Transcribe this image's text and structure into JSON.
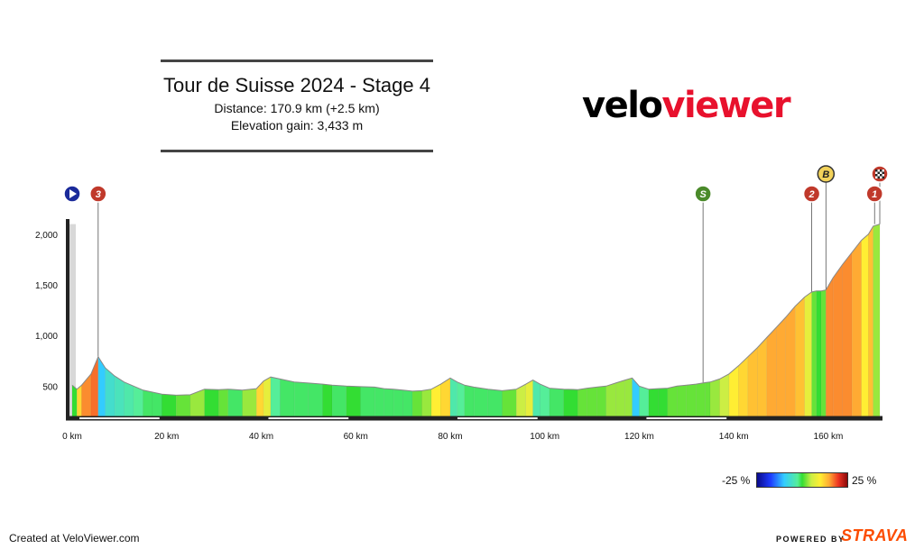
{
  "header": {
    "title": "Tour de Suisse 2024 - Stage 4",
    "distance": "Distance: 170.9 km (+2.5 km)",
    "elevation_gain": "Elevation gain: 3,433 m"
  },
  "logo": {
    "part1": "velo",
    "part2": "viewer"
  },
  "footer": {
    "created": "Created at VeloViewer.com",
    "powered": "POWERED BY",
    "strava": "STRAVA"
  },
  "legend": {
    "min_label": "-25 %",
    "max_label": "25 %"
  },
  "colors": {
    "accent": "#e8112d",
    "strava": "#fc4c02",
    "marker_red": "#c0392b",
    "marker_blue": "#1a2a9a",
    "marker_green": "#4a8a2a",
    "marker_yellow": "#f2d25a"
  },
  "markers": [
    {
      "km": 0,
      "icon": "play-icon",
      "label": ""
    },
    {
      "km": 5.5,
      "icon": "climb-icon",
      "label": "3"
    },
    {
      "km": 133.5,
      "icon": "sprint-icon",
      "label": "S"
    },
    {
      "km": 156.5,
      "icon": "climb-icon",
      "label": "2"
    },
    {
      "km": 159.5,
      "icon": "bonus-icon",
      "label": "B"
    },
    {
      "km": 170.9,
      "icon": "finish-flag-icon",
      "label": ""
    },
    {
      "km": 169.8,
      "icon": "climb-icon",
      "label": "1"
    }
  ],
  "chart_data": {
    "type": "area",
    "xlabel": "",
    "ylabel": "",
    "xlim": [
      0,
      170.9
    ],
    "ylim": [
      200,
      2150
    ],
    "x_ticks": [
      "0 km",
      "20 km",
      "40 km",
      "60 km",
      "80 km",
      "100 km",
      "120 km",
      "140 km",
      "160 km"
    ],
    "y_ticks": [
      "500",
      "1,000",
      "1,500",
      "2,000"
    ],
    "series": [
      {
        "x": [
          0,
          1,
          2,
          4,
          5.5,
          7,
          9,
          11,
          13,
          15,
          17,
          19,
          22,
          25,
          28,
          31,
          33,
          36,
          39,
          40.5,
          42,
          44,
          47,
          50,
          53,
          55,
          58,
          61,
          64,
          66,
          68,
          70,
          72,
          74,
          76,
          78,
          80,
          81.5,
          83,
          85,
          88,
          91,
          94,
          96,
          97.5,
          99,
          101,
          104,
          107,
          109,
          111,
          113,
          115,
          117,
          118.5,
          120,
          122,
          124,
          126,
          128,
          130,
          132,
          134,
          135,
          137,
          139,
          141,
          143,
          145,
          147,
          149,
          151,
          153,
          155,
          156.5,
          157.5,
          158.5,
          159.5,
          161,
          163,
          165,
          167,
          168.5,
          169.5,
          170.9
        ],
        "elevation": [
          510,
          470,
          510,
          620,
          790,
          680,
          600,
          540,
          500,
          460,
          440,
          420,
          410,
          415,
          470,
          465,
          470,
          460,
          475,
          550,
          590,
          570,
          540,
          530,
          520,
          510,
          500,
          495,
          490,
          475,
          470,
          460,
          450,
          455,
          470,
          520,
          580,
          540,
          510,
          490,
          470,
          455,
          470,
          520,
          560,
          520,
          480,
          470,
          465,
          480,
          490,
          500,
          530,
          560,
          580,
          500,
          470,
          475,
          480,
          500,
          510,
          520,
          535,
          540,
          570,
          620,
          700,
          790,
          880,
          980,
          1080,
          1180,
          1290,
          1380,
          1430,
          1440,
          1440,
          1450,
          1570,
          1700,
          1820,
          1940,
          2000,
          2080,
          2100
        ],
        "gradient_pct": [
          -3,
          0,
          6,
          9,
          10,
          -8,
          -5,
          -4,
          -3,
          -2,
          -1,
          -1,
          0,
          1,
          2,
          0,
          1,
          -1,
          2,
          6,
          4,
          -2,
          -1,
          -1,
          -1,
          0,
          -1,
          0,
          -1,
          -1,
          -1,
          -1,
          -1,
          1,
          2,
          5,
          6,
          -3,
          -2,
          -1,
          -1,
          -1,
          1,
          3,
          4,
          -3,
          -2,
          -1,
          0,
          1,
          1,
          1,
          2,
          2,
          2,
          -8,
          -2,
          0,
          0,
          1,
          1,
          1,
          1,
          1,
          2,
          3,
          5,
          6,
          7,
          7,
          8,
          8,
          8,
          7,
          4,
          1,
          0,
          1,
          9,
          9,
          9,
          8,
          5,
          7,
          2
        ]
      }
    ]
  }
}
